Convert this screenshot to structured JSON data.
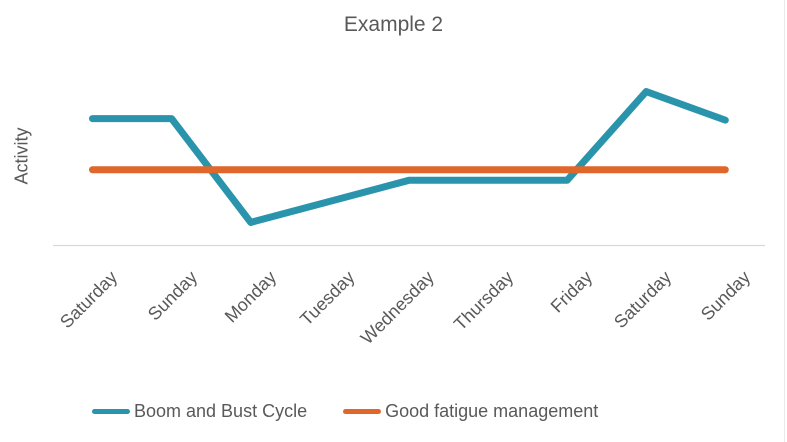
{
  "chart_data": {
    "type": "line",
    "title": "Example 2",
    "ylabel": "Activity",
    "xlabel": "",
    "categories": [
      "Saturday",
      "Sunday",
      "Monday",
      "Tuesday",
      "Wednesday",
      "Thursday",
      "Friday",
      "Saturday",
      "Sunday"
    ],
    "series": [
      {
        "name": "Boom and Bust Cycle",
        "color": "#2994AB",
        "values": [
          8.4,
          8.4,
          1.5,
          2.9,
          4.3,
          4.3,
          4.3,
          10.2,
          8.3
        ]
      },
      {
        "name": "Good fatigue management",
        "color": "#E0672C",
        "values": [
          5,
          5,
          5,
          5,
          5,
          5,
          5,
          5,
          5
        ]
      }
    ],
    "ylim": [
      0,
      11.3
    ],
    "y_axis_labels_visible": false,
    "grid": false,
    "legend_position": "bottom"
  },
  "palette": {
    "text": "#595959",
    "axis_line": "#D9D9D9",
    "border": "#E9E9E9",
    "background": "#FFFFFF"
  }
}
